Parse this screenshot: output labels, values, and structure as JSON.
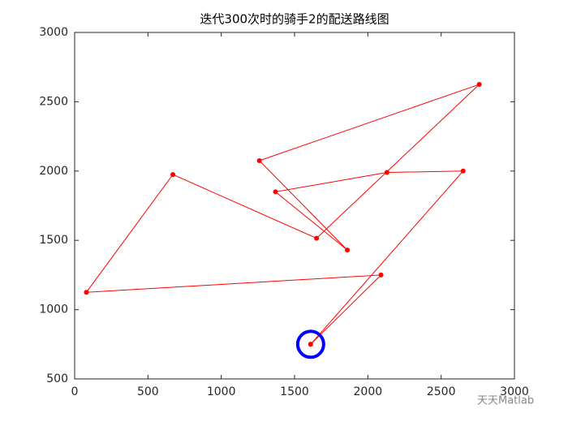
{
  "chart_data": {
    "type": "line",
    "title": "迭代300次时的骑手2的配送路线图",
    "x": [
      1610,
      2090,
      80,
      670,
      1650,
      2760,
      1260,
      1860,
      1370,
      2130,
      2650,
      1610
    ],
    "series": [
      {
        "color": "#ff0000",
        "values": [
          750,
          1250,
          1125,
          1975,
          1515,
          2625,
          2075,
          1430,
          1850,
          1990,
          2000,
          750
        ]
      }
    ],
    "depot": {
      "x": 1610,
      "y": 750,
      "color": "#0000ff"
    },
    "xlim": [
      0,
      3000
    ],
    "xticks": [
      0,
      500,
      1000,
      1500,
      2000,
      2500,
      3000
    ],
    "ylim": [
      500,
      3000
    ],
    "yticks": [
      500,
      1000,
      1500,
      2000,
      2500,
      3000
    ],
    "watermark": "天天Matlab"
  }
}
